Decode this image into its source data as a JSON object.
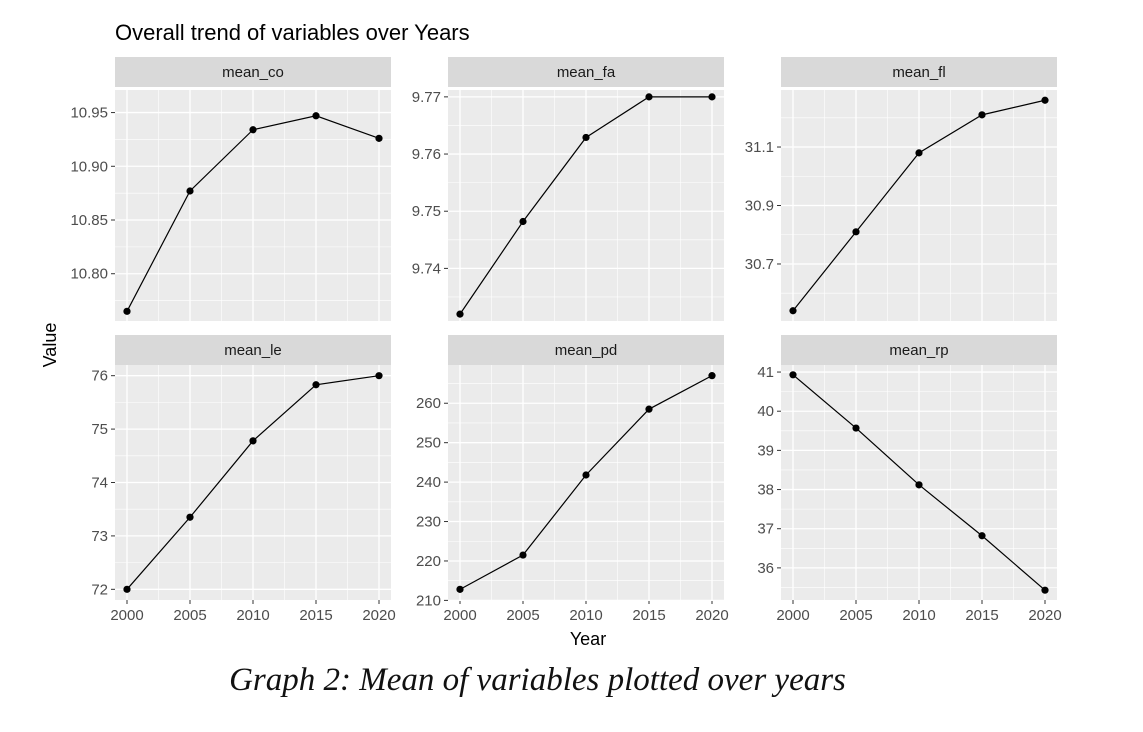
{
  "title": "Overall trend of variables over Years",
  "xlabel": "Year",
  "ylabel": "Value",
  "caption": "Graph 2: Mean of variables plotted over years",
  "colors": {
    "panel_bg": "#ebebeb",
    "strip_bg": "#d9d9d9",
    "grid": "#ffffff",
    "line": "#000000",
    "tick_text": "#4d4d4d"
  },
  "chart_data": [
    {
      "type": "line",
      "title": "mean_co",
      "x": [
        2000,
        2005,
        2010,
        2015,
        2020
      ],
      "values": [
        10.765,
        10.877,
        10.934,
        10.947,
        10.926
      ],
      "ylim": [
        10.756,
        10.971
      ],
      "yticks": [
        10.8,
        10.85,
        10.9,
        10.95
      ],
      "ytick_labels": [
        "10.80",
        "10.85",
        "10.90",
        "10.95"
      ],
      "xticks": [
        2000,
        2005,
        2010,
        2015,
        2020
      ],
      "xtick_labels": [],
      "grid": true
    },
    {
      "type": "line",
      "title": "mean_fa",
      "x": [
        2000,
        2005,
        2010,
        2015,
        2020
      ],
      "values": [
        9.732,
        9.7482,
        9.7629,
        9.77,
        9.77
      ],
      "ylim": [
        9.7308,
        9.7712
      ],
      "yticks": [
        9.74,
        9.75,
        9.76,
        9.77
      ],
      "ytick_labels": [
        "9.74",
        "9.75",
        "9.76",
        "9.77"
      ],
      "xticks": [
        2000,
        2005,
        2010,
        2015,
        2020
      ],
      "xtick_labels": [],
      "grid": true
    },
    {
      "type": "line",
      "title": "mean_fl",
      "x": [
        2000,
        2005,
        2010,
        2015,
        2020
      ],
      "values": [
        30.54,
        30.81,
        31.08,
        31.21,
        31.26
      ],
      "ylim": [
        30.505,
        31.295
      ],
      "yticks": [
        30.7,
        30.9,
        31.1
      ],
      "ytick_labels": [
        "30.7",
        "30.9",
        "31.1"
      ],
      "xticks": [
        2000,
        2005,
        2010,
        2015,
        2020
      ],
      "xtick_labels": [],
      "grid": true
    },
    {
      "type": "line",
      "title": "mean_le",
      "x": [
        2000,
        2005,
        2010,
        2015,
        2020
      ],
      "values": [
        72.0,
        73.35,
        74.78,
        75.83,
        76.0
      ],
      "ylim": [
        71.8,
        76.2
      ],
      "yticks": [
        72,
        73,
        74,
        75,
        76
      ],
      "ytick_labels": [
        "72",
        "73",
        "74",
        "75",
        "76"
      ],
      "xticks": [
        2000,
        2005,
        2010,
        2015,
        2020
      ],
      "xtick_labels": [
        "2000",
        "2005",
        "2010",
        "2015",
        "2020"
      ],
      "grid": true
    },
    {
      "type": "line",
      "title": "mean_pd",
      "x": [
        2000,
        2005,
        2010,
        2015,
        2020
      ],
      "values": [
        212.8,
        221.5,
        241.8,
        258.5,
        267.0
      ],
      "ylim": [
        210.1,
        269.7
      ],
      "yticks": [
        210,
        220,
        230,
        240,
        250,
        260
      ],
      "ytick_labels": [
        "210",
        "220",
        "230",
        "240",
        "250",
        "260"
      ],
      "xticks": [
        2000,
        2005,
        2010,
        2015,
        2020
      ],
      "xtick_labels": [
        "2000",
        "2005",
        "2010",
        "2015",
        "2020"
      ],
      "grid": true
    },
    {
      "type": "line",
      "title": "mean_rp",
      "x": [
        2000,
        2005,
        2010,
        2015,
        2020
      ],
      "values": [
        40.93,
        39.57,
        38.12,
        36.82,
        35.43
      ],
      "ylim": [
        35.18,
        41.18
      ],
      "yticks": [
        36,
        37,
        38,
        39,
        40,
        41
      ],
      "ytick_labels": [
        "36",
        "37",
        "38",
        "39",
        "40",
        "41"
      ],
      "xticks": [
        2000,
        2005,
        2010,
        2015,
        2020
      ],
      "xtick_labels": [
        "2000",
        "2005",
        "2010",
        "2015",
        "2020"
      ],
      "grid": true
    }
  ]
}
